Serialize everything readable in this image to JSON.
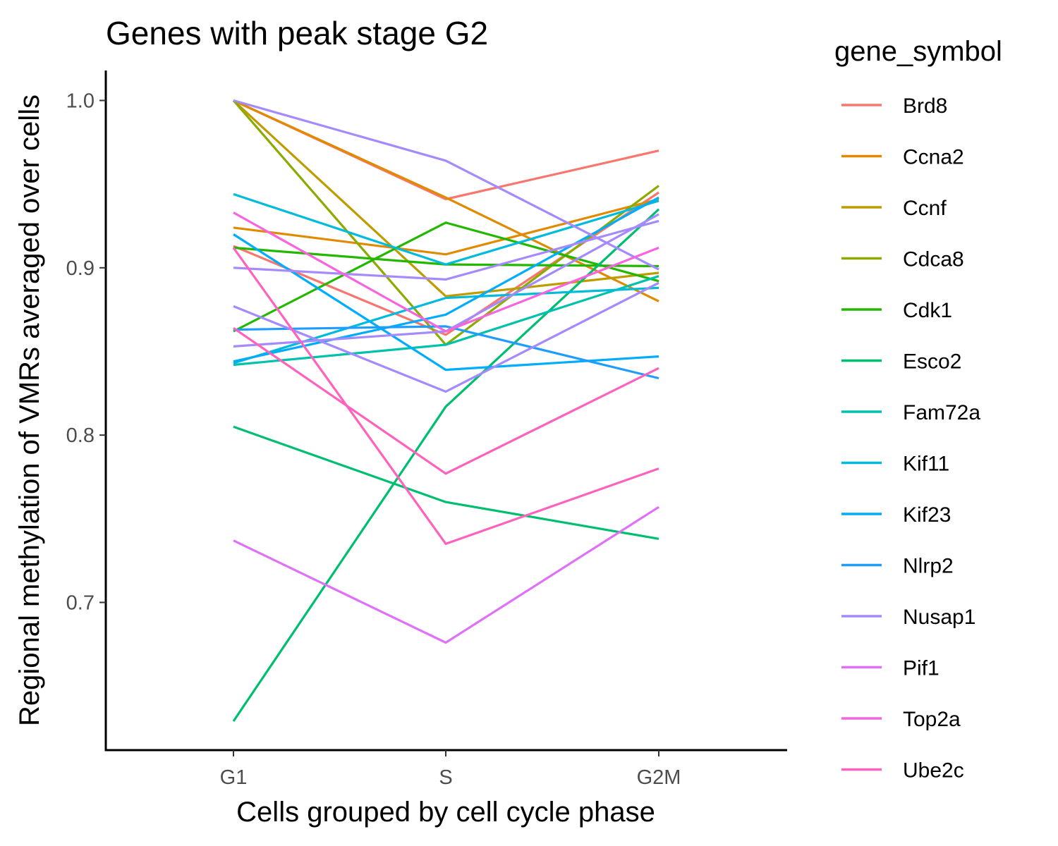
{
  "chart_data": {
    "type": "line",
    "title": "Genes with peak stage G2",
    "xlabel": "Cells grouped by cell cycle phase",
    "ylabel": "Regional methylation of VMRs averaged over cells",
    "categories": [
      "G1",
      "S",
      "G2M"
    ],
    "yticks": [
      "0.7",
      "0.8",
      "0.9",
      "1.0"
    ],
    "ylim": [
      0.612,
      1.018
    ],
    "grid": false,
    "legend": {
      "title": "gene_symbol",
      "placement": "right",
      "entries": [
        "Brd8",
        "Ccna2",
        "Ccnf",
        "Cdca8",
        "Cdk1",
        "Esco2",
        "Fam72a",
        "Kif11",
        "Kif23",
        "Nlrp2",
        "Nusap1",
        "Pif1",
        "Top2a",
        "Ube2c"
      ]
    },
    "colors": {
      "Brd8": "#F8766D",
      "Ccna2": "#E18A00",
      "Ccnf": "#BE9C00",
      "Cdca8": "#8CAB00",
      "Cdk1": "#24B700",
      "Esco2": "#00BE70",
      "Fam72a": "#00C1AB",
      "Kif11": "#00BBDA",
      "Kif23": "#00ACFC",
      "Nlrp2": "#1F9DFF",
      "Nusap1": "#A58AFF",
      "Pif1": "#DF70F8",
      "Top2a": "#F863DF",
      "Ube2c": "#FF62BC"
    },
    "series": [
      {
        "name": "Brd8",
        "values": [
          1.0,
          0.941,
          0.97
        ]
      },
      {
        "name": "Brd8",
        "values": [
          0.913,
          0.86,
          0.945
        ]
      },
      {
        "name": "Ccna2",
        "values": [
          1.0,
          0.942,
          0.88
        ]
      },
      {
        "name": "Ccna2",
        "values": [
          0.924,
          0.908,
          0.941
        ]
      },
      {
        "name": "Ccnf",
        "values": [
          1.0,
          0.883,
          0.897
        ]
      },
      {
        "name": "Cdca8",
        "values": [
          1.0,
          0.854,
          0.949
        ]
      },
      {
        "name": "Cdk1",
        "values": [
          0.862,
          0.927,
          0.892
        ]
      },
      {
        "name": "Cdk1",
        "values": [
          0.912,
          0.902,
          0.901
        ]
      },
      {
        "name": "Esco2",
        "values": [
          0.629,
          0.817,
          0.935
        ]
      },
      {
        "name": "Esco2",
        "values": [
          0.805,
          0.76,
          0.738
        ]
      },
      {
        "name": "Fam72a",
        "values": [
          0.842,
          0.854,
          0.895
        ]
      },
      {
        "name": "Kif11",
        "values": [
          0.944,
          0.902,
          0.94
        ]
      },
      {
        "name": "Kif11",
        "values": [
          0.843,
          0.882,
          0.888
        ]
      },
      {
        "name": "Kif23",
        "values": [
          0.92,
          0.839,
          0.847
        ]
      },
      {
        "name": "Kif23",
        "values": [
          0.844,
          0.872,
          0.942
        ]
      },
      {
        "name": "Nlrp2",
        "values": [
          0.863,
          0.865,
          0.834
        ]
      },
      {
        "name": "Nusap1",
        "values": [
          1.0,
          0.964,
          0.899
        ]
      },
      {
        "name": "Nusap1",
        "values": [
          0.9,
          0.893,
          0.928
        ]
      },
      {
        "name": "Nusap1",
        "values": [
          0.877,
          0.826,
          0.891
        ]
      },
      {
        "name": "Nusap1",
        "values": [
          0.853,
          0.862,
          0.932
        ]
      },
      {
        "name": "Pif1",
        "values": [
          0.737,
          0.676,
          0.757
        ]
      },
      {
        "name": "Top2a",
        "values": [
          0.933,
          0.862,
          0.912
        ]
      },
      {
        "name": "Ube2c",
        "values": [
          0.864,
          0.777,
          0.84
        ]
      },
      {
        "name": "Ube2c",
        "values": [
          0.912,
          0.735,
          0.78
        ]
      }
    ]
  }
}
